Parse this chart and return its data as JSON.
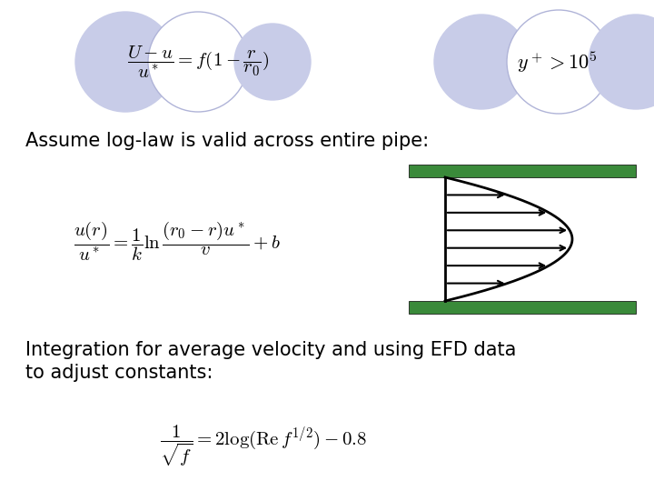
{
  "background_color": "#ffffff",
  "ellipse_fill_color": "#c8cce8",
  "ellipse_stroke_color": "#b0b4d8",
  "ellipse_empty_fill": "#ffffff",
  "text1": "Assume log-law is valid across entire pipe:",
  "text2_line1": "Integration for average velocity and using EFD data",
  "text2_line2": "to adjust constants:",
  "text_fontsize": 15,
  "formula_fontsize": 15,
  "pipe_green": "#3a8a3a",
  "pipe_green_dark": "#2d6e2d"
}
